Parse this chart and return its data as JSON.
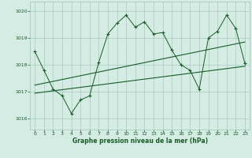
{
  "background_color": "#d4ece4",
  "grid_color": "#9dc4b4",
  "line_color": "#1a5c28",
  "xlim": [
    -0.5,
    23.5
  ],
  "ylim": [
    1015.6,
    1020.35
  ],
  "yticks": [
    1016,
    1017,
    1018,
    1019,
    1020
  ],
  "xticks": [
    0,
    1,
    2,
    3,
    4,
    5,
    6,
    7,
    8,
    9,
    10,
    11,
    12,
    13,
    14,
    15,
    16,
    17,
    18,
    19,
    20,
    21,
    22,
    23
  ],
  "pressure_data": [
    1018.5,
    1017.8,
    1017.1,
    1016.85,
    1016.2,
    1016.7,
    1016.85,
    1018.1,
    1019.15,
    1019.55,
    1019.85,
    1019.4,
    1019.6,
    1019.15,
    1019.2,
    1018.55,
    1018.0,
    1017.8,
    1017.1,
    1019.0,
    1019.25,
    1019.85,
    1019.35,
    1018.05
  ],
  "trend_line1_x": [
    0,
    23
  ],
  "trend_line1_y": [
    1016.95,
    1017.95
  ],
  "trend_line2_x": [
    0,
    23
  ],
  "trend_line2_y": [
    1017.25,
    1018.85
  ],
  "xlabel": "Graphe pression niveau de la mer (hPa)"
}
